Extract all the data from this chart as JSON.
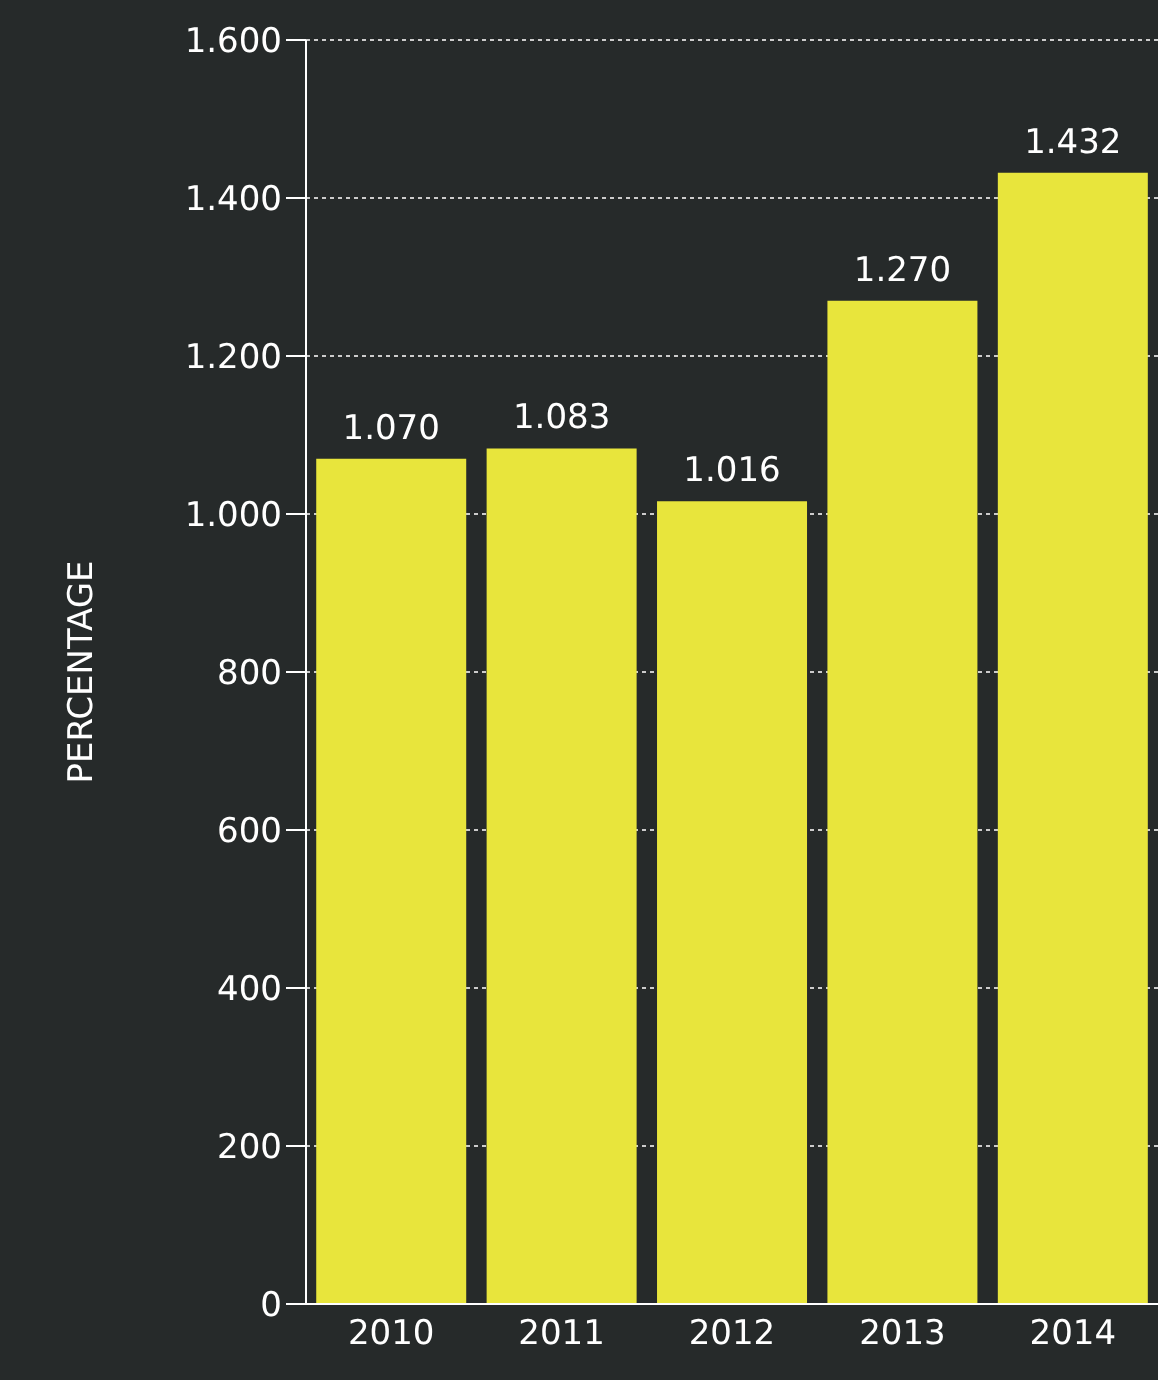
{
  "chart_data": {
    "type": "bar",
    "ylabel": "PERCENTAGE",
    "categories": [
      "2010",
      "2011",
      "2012",
      "2013",
      "2014"
    ],
    "values": [
      1070,
      1083,
      1016,
      1270,
      1432
    ],
    "value_labels": [
      "1.070",
      "1.083",
      "1.016",
      "1.270",
      "1.432"
    ],
    "color": "#e8e53c",
    "ylim": [
      0,
      1600
    ],
    "yticks": [
      {
        "value": 0,
        "label": "0"
      },
      {
        "value": 200,
        "label": "200"
      },
      {
        "value": 400,
        "label": "400"
      },
      {
        "value": 600,
        "label": "600"
      },
      {
        "value": 800,
        "label": "800"
      },
      {
        "value": 1000,
        "label": "1.000"
      },
      {
        "value": 1200,
        "label": "1.200"
      },
      {
        "value": 1400,
        "label": "1.400"
      },
      {
        "value": 1600,
        "label": "1.600"
      }
    ],
    "grid": "y"
  }
}
